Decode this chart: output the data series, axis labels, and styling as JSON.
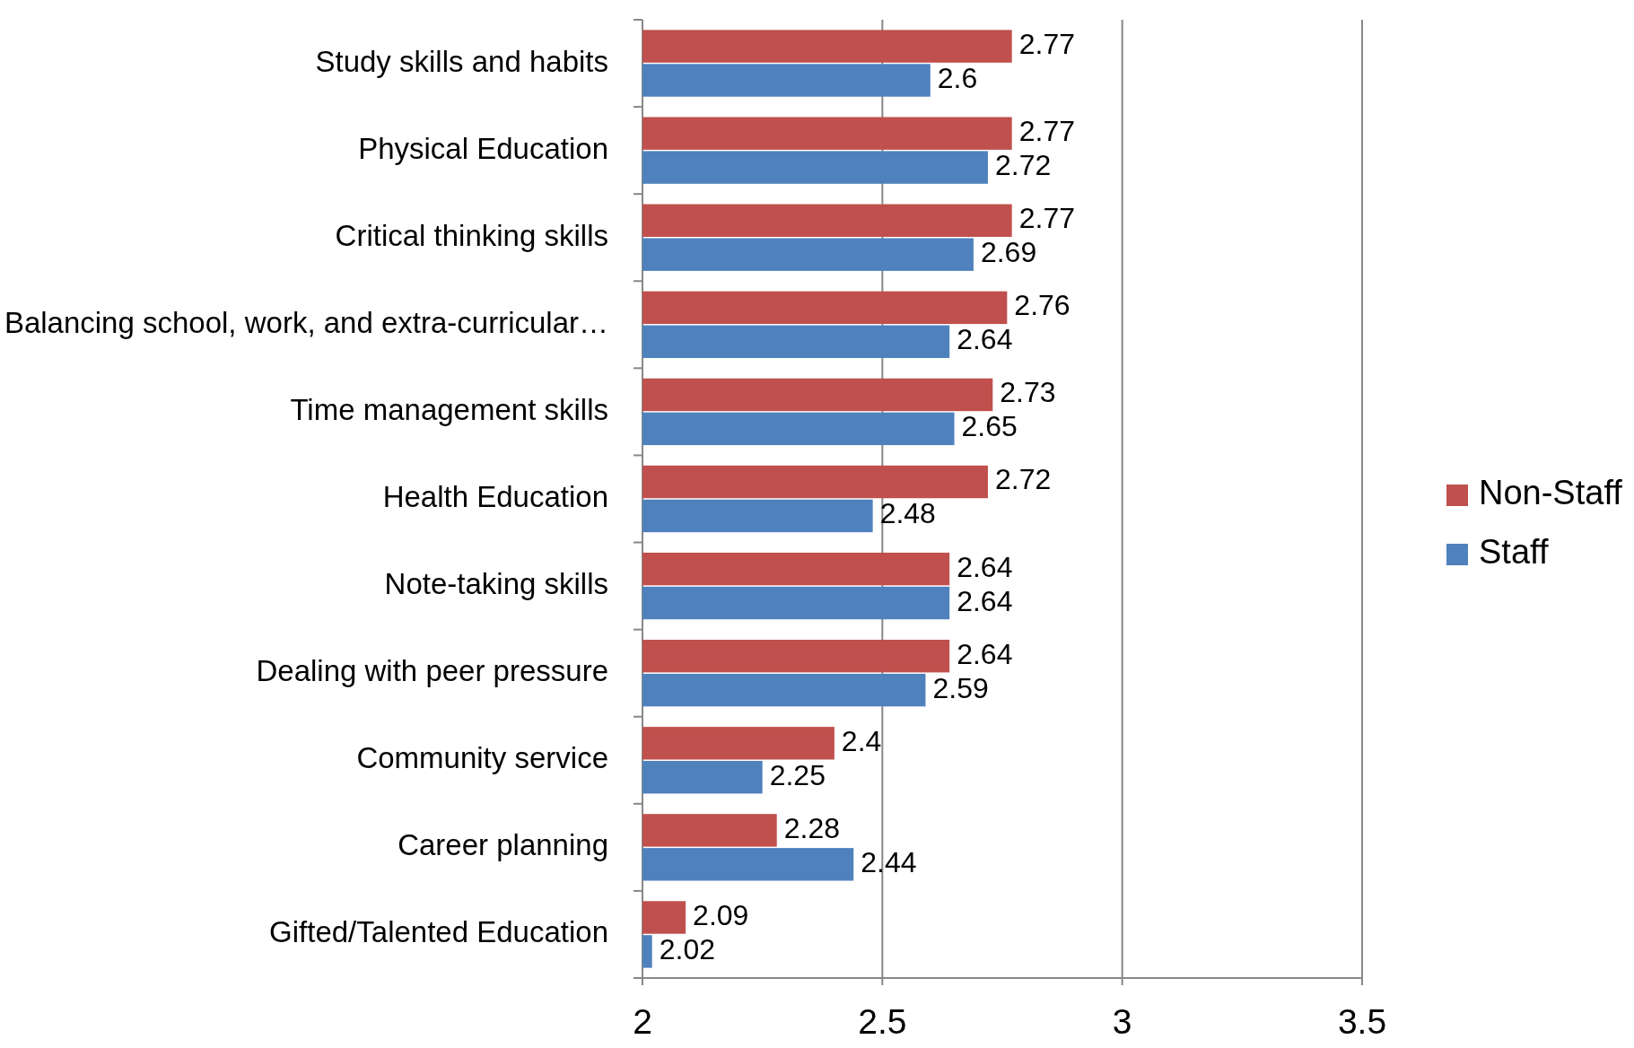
{
  "chart_data": {
    "type": "bar",
    "orientation": "horizontal",
    "categories": [
      "Study skills and habits",
      "Physical Education",
      "Critical thinking skills",
      "Balancing school, work, and extra-curricular…",
      "Time management skills",
      "Health Education",
      "Note-taking skills",
      "Dealing with peer pressure",
      "Community service",
      "Career planning",
      "Gifted/Talented Education"
    ],
    "series": [
      {
        "name": "Non-Staff",
        "color": "#c0504d",
        "values": [
          2.77,
          2.77,
          2.77,
          2.76,
          2.73,
          2.72,
          2.64,
          2.64,
          2.4,
          2.28,
          2.09
        ]
      },
      {
        "name": "Staff",
        "color": "#4f81bd",
        "values": [
          2.6,
          2.72,
          2.69,
          2.64,
          2.65,
          2.48,
          2.64,
          2.59,
          2.25,
          2.44,
          2.02
        ]
      }
    ],
    "xlim": [
      2,
      3.5
    ],
    "xticks": [
      2,
      2.5,
      3,
      3.5
    ],
    "grid": "x",
    "legend": "right",
    "data_labels": true
  }
}
